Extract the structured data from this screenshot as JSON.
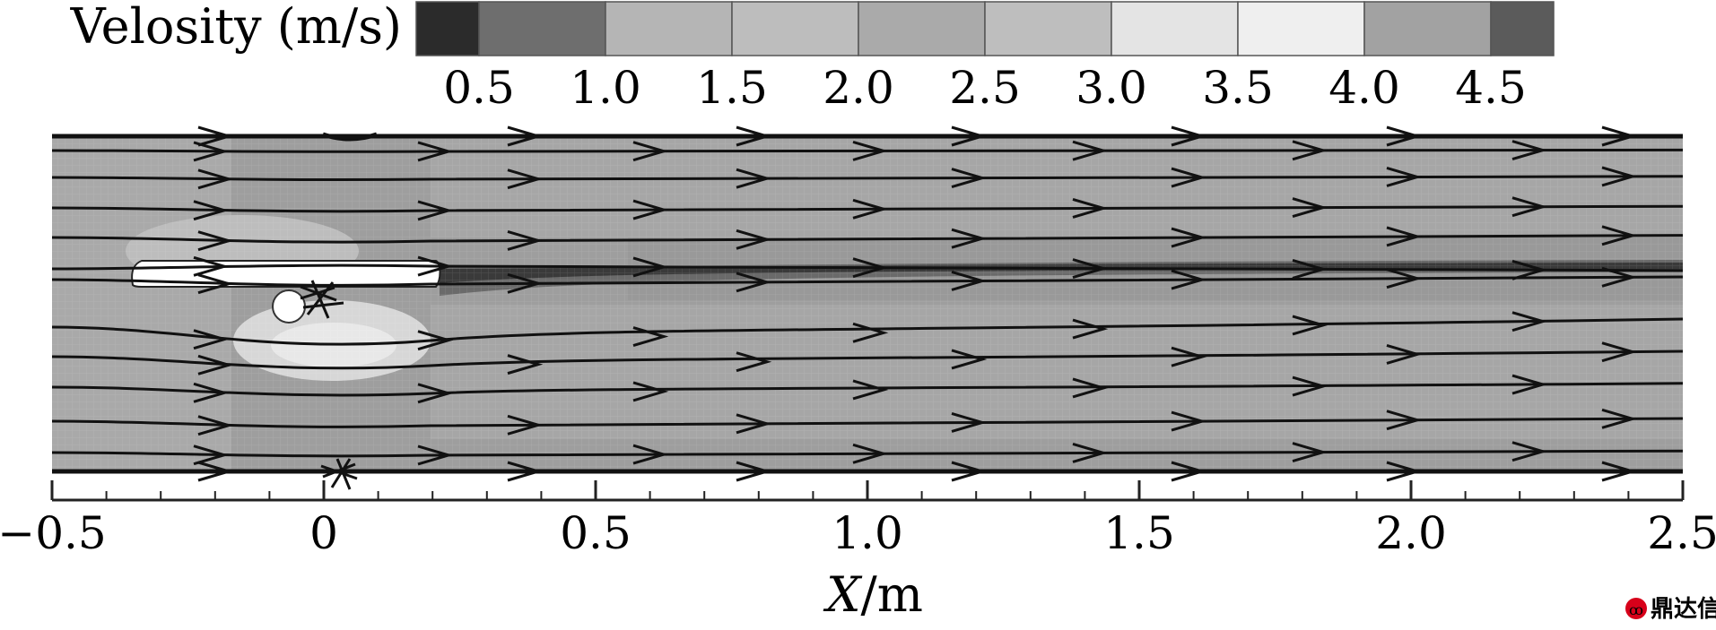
{
  "colorbar": {
    "title": "Velosity (m/s)",
    "tick_labels": [
      "0.5",
      "1.0",
      "1.5",
      "2.0",
      "2.5",
      "3.0",
      "3.5",
      "4.0",
      "4.5"
    ],
    "swatch_colors": [
      "#2b2b2b",
      "#6e6e6e",
      "#b5b5b5",
      "#bdbdbd",
      "#aaaaaa",
      "#bebebe",
      "#e4e4e4",
      "#efefef",
      "#a2a2a2",
      "#5b5b5b"
    ]
  },
  "plot": {
    "x_axis": {
      "label_italic": "X",
      "label_unit": "/m",
      "range": [
        -0.5,
        2.5
      ],
      "major_ticks": [
        -0.5,
        0,
        0.5,
        1.0,
        1.5,
        2.0,
        2.5
      ],
      "tick_labels": [
        "−0.5",
        "0",
        "0.5",
        "1.0",
        "1.5",
        "2.0",
        "2.5"
      ]
    },
    "background_color": "#9e9e9e",
    "line_color": "#111111"
  },
  "watermark": {
    "text": "鼎达信",
    "color": "#d7001a"
  }
}
